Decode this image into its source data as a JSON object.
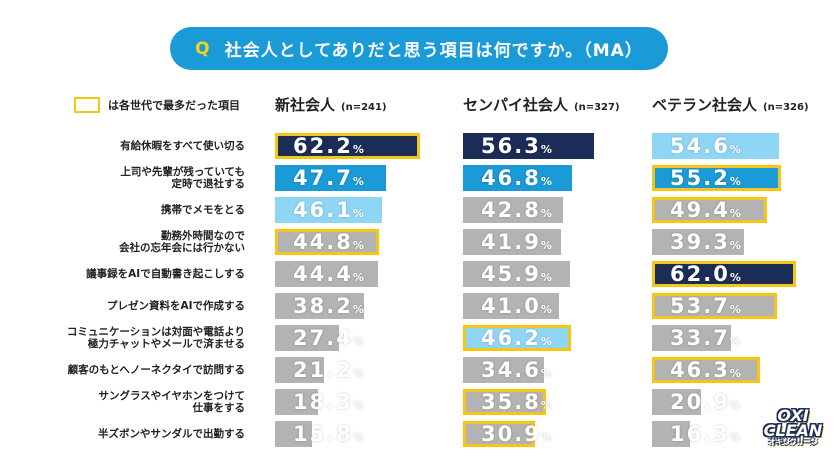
{
  "title": {
    "q": "Q",
    "text": "社会人としてありだと思う項目は何ですか。（MA）"
  },
  "legend": "は各世代で最多だった項目",
  "colors": {
    "rank1": "#1b2d57",
    "rank2": "#1a9ad6",
    "rank3": "#8fd6f5",
    "other": "#b3b3b3",
    "highlight": "#f5c518"
  },
  "logo": {
    "main": "OXI CLEAN",
    "sub": "オキシクリーン"
  },
  "chart_data": {
    "type": "bar",
    "unit": "%",
    "categories": [
      "有給休暇をすべて使い切る",
      "上司や先輩が残っていても\n定時で退社する",
      "携帯でメモをとる",
      "勤務外時間なので\n会社の忘年会には行かない",
      "議事録をAIで自動書き起こしする",
      "プレゼン資料をAIで作成する",
      "コミュニケーションは対面や電話より\n極力チャットやメールで済ませる",
      "顧客のもとへノーネクタイで訪問する",
      "サングラスやイヤホンをつけて\n仕事をする",
      "半ズボンやサンダルで出勤する"
    ],
    "series": [
      {
        "name": "新社会人",
        "n": "(n=241)",
        "values": [
          62.2,
          47.7,
          46.1,
          44.8,
          44.4,
          38.2,
          27.4,
          21.2,
          18.3,
          15.8
        ],
        "rank": [
          1,
          2,
          3,
          0,
          0,
          0,
          0,
          0,
          0,
          0
        ],
        "highlight": [
          true,
          false,
          false,
          true,
          false,
          false,
          false,
          false,
          false,
          false
        ]
      },
      {
        "name": "センパイ社会人",
        "n": "(n=327)",
        "values": [
          56.3,
          46.8,
          42.8,
          41.9,
          45.9,
          41.0,
          46.2,
          34.6,
          35.8,
          30.9
        ],
        "rank": [
          1,
          2,
          0,
          0,
          0,
          0,
          3,
          0,
          0,
          0
        ],
        "highlight": [
          false,
          false,
          false,
          false,
          false,
          false,
          true,
          false,
          true,
          true
        ]
      },
      {
        "name": "ベテラン社会人",
        "n": "(n=326)",
        "values": [
          54.6,
          55.2,
          49.4,
          39.3,
          62.0,
          53.7,
          33.7,
          46.3,
          20.9,
          16.3
        ],
        "rank": [
          3,
          2,
          0,
          0,
          1,
          0,
          0,
          0,
          0,
          0
        ],
        "highlight": [
          false,
          true,
          true,
          false,
          true,
          true,
          false,
          true,
          false,
          false
        ]
      }
    ]
  }
}
